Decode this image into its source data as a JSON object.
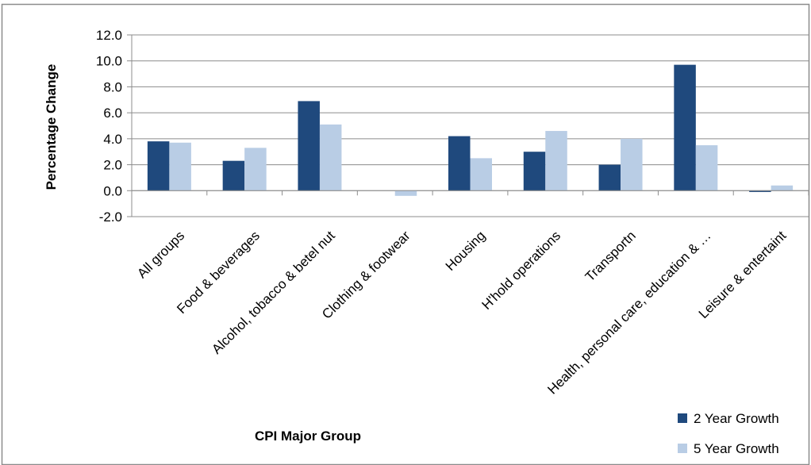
{
  "chart_data": {
    "type": "bar",
    "title": "",
    "xlabel": "CPI Major Group",
    "ylabel": "Percentage Change",
    "ylim": [
      -2.0,
      12.0
    ],
    "ytick_step": 2.0,
    "ytick_labels": [
      "-2.0",
      "0.0",
      "2.0",
      "4.0",
      "6.0",
      "8.0",
      "10.0",
      "12.0"
    ],
    "grid": true,
    "legend_position": "bottom-right",
    "categories": [
      "All groups",
      "Food & beverages",
      "Alcohol, tobacco & betel nut",
      "Clothing & footwear",
      "Housing",
      "H'hold operations",
      "Transportn",
      "Health, personal care, education & …",
      "Leisure & entertaint"
    ],
    "series": [
      {
        "name": "2 Year Growth",
        "color": "#1f497d",
        "values": [
          3.8,
          2.3,
          6.9,
          0.0,
          4.2,
          3.0,
          2.0,
          9.7,
          -0.1
        ]
      },
      {
        "name": "5 Year Growth",
        "color": "#b9cde5",
        "values": [
          3.7,
          3.3,
          5.1,
          -0.4,
          2.5,
          4.6,
          4.0,
          3.5,
          0.4
        ]
      }
    ]
  }
}
